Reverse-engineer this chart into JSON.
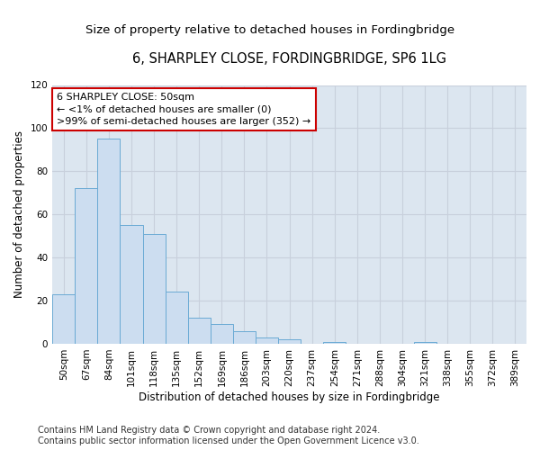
{
  "title": "6, SHARPLEY CLOSE, FORDINGBRIDGE, SP6 1LG",
  "subtitle": "Size of property relative to detached houses in Fordingbridge",
  "xlabel": "Distribution of detached houses by size in Fordingbridge",
  "ylabel": "Number of detached properties",
  "categories": [
    "50sqm",
    "67sqm",
    "84sqm",
    "101sqm",
    "118sqm",
    "135sqm",
    "152sqm",
    "169sqm",
    "186sqm",
    "203sqm",
    "220sqm",
    "237sqm",
    "254sqm",
    "271sqm",
    "288sqm",
    "304sqm",
    "321sqm",
    "338sqm",
    "355sqm",
    "372sqm",
    "389sqm"
  ],
  "values": [
    23,
    72,
    95,
    55,
    51,
    24,
    12,
    9,
    6,
    3,
    2,
    0,
    1,
    0,
    0,
    0,
    1,
    0,
    0,
    0,
    0
  ],
  "bar_color": "#ccddf0",
  "bar_edge_color": "#6aaad4",
  "annotation_line1": "6 SHARPLEY CLOSE: 50sqm",
  "annotation_line2": "← <1% of detached houses are smaller (0)",
  "annotation_line3": ">99% of semi-detached houses are larger (352) →",
  "annotation_box_color": "#ffffff",
  "annotation_box_edge_color": "#cc0000",
  "ylim": [
    0,
    120
  ],
  "yticks": [
    0,
    20,
    40,
    60,
    80,
    100,
    120
  ],
  "grid_color": "#c8d0dc",
  "background_color": "#dce6f0",
  "footer_line1": "Contains HM Land Registry data © Crown copyright and database right 2024.",
  "footer_line2": "Contains public sector information licensed under the Open Government Licence v3.0.",
  "title_fontsize": 10.5,
  "subtitle_fontsize": 9.5,
  "xlabel_fontsize": 8.5,
  "ylabel_fontsize": 8.5,
  "tick_fontsize": 7.5,
  "annotation_fontsize": 8,
  "footer_fontsize": 7
}
